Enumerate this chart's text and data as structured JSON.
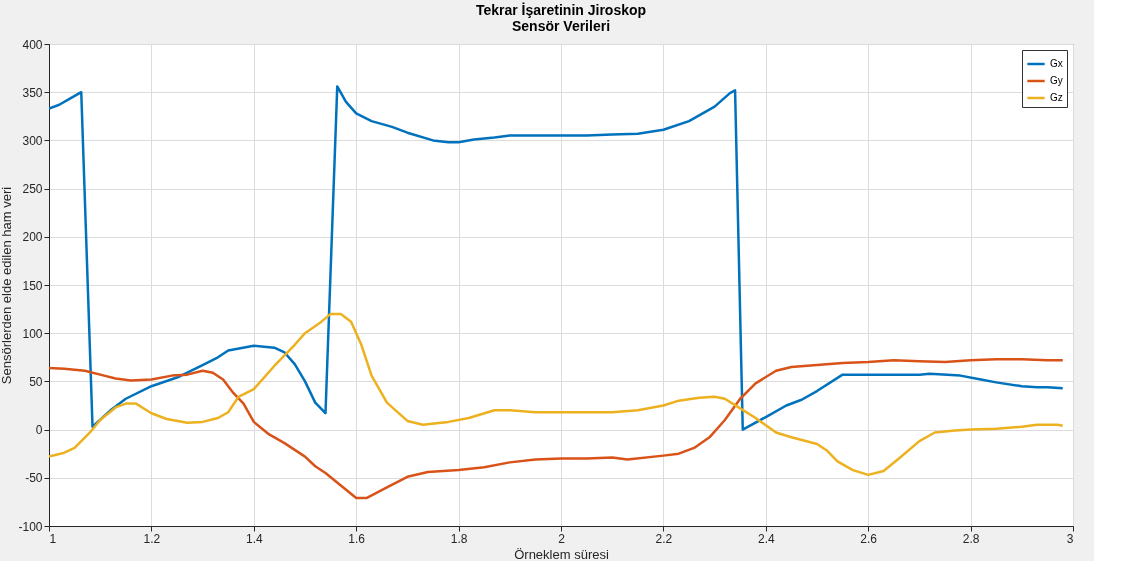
{
  "chart_data": {
    "type": "line",
    "title": "Tekrar İşaretinin Jiroskop",
    "subtitle": "Sensör Verileri",
    "xlabel": "Örneklem süresi",
    "ylabel": "Sensörlerden elde edilen ham veri",
    "xlim": [
      1,
      3
    ],
    "ylim": [
      -100,
      400
    ],
    "xticks": [
      1,
      1.2,
      1.4,
      1.6,
      1.8,
      2,
      2.2,
      2.4,
      2.6,
      2.8,
      3
    ],
    "yticks": [
      -100,
      -50,
      0,
      50,
      100,
      150,
      200,
      250,
      300,
      350,
      400
    ],
    "grid": true,
    "legend": "top right",
    "marker": "none",
    "line_style": "solid",
    "series": [
      {
        "name": "Gx",
        "color": "#0072bd",
        "x": [
          1.0,
          1.02,
          1.04,
          1.063,
          1.085,
          1.12,
          1.15,
          1.2,
          1.25,
          1.3,
          1.33,
          1.35,
          1.4,
          1.44,
          1.46,
          1.48,
          1.5,
          1.52,
          1.54,
          1.563,
          1.58,
          1.6,
          1.63,
          1.67,
          1.7,
          1.75,
          1.78,
          1.8,
          1.83,
          1.87,
          1.9,
          2.0,
          2.05,
          2.1,
          2.15,
          2.2,
          2.25,
          2.3,
          2.33,
          2.34,
          2.355,
          2.4,
          2.44,
          2.47,
          2.5,
          2.55,
          2.6,
          2.65,
          2.7,
          2.72,
          2.78,
          2.82,
          2.85,
          2.9,
          2.93,
          2.95,
          2.98
        ],
        "values": [
          333,
          337,
          343,
          350,
          3,
          20,
          32,
          45,
          54,
          67,
          75,
          82,
          87,
          85,
          80,
          68,
          50,
          28,
          17,
          356,
          340,
          328,
          320,
          314,
          308,
          300,
          298,
          298,
          301,
          303,
          305,
          305,
          305,
          306,
          307,
          311,
          320,
          335,
          349,
          352,
          0,
          13,
          25,
          31,
          40,
          57,
          57,
          57,
          57,
          58,
          56,
          52,
          49,
          45,
          44,
          44,
          43
        ]
      },
      {
        "name": "Gy",
        "color": "#d95319",
        "x": [
          1.0,
          1.03,
          1.07,
          1.1,
          1.13,
          1.16,
          1.2,
          1.24,
          1.27,
          1.3,
          1.32,
          1.34,
          1.36,
          1.38,
          1.4,
          1.43,
          1.46,
          1.5,
          1.52,
          1.54,
          1.57,
          1.6,
          1.62,
          1.66,
          1.7,
          1.74,
          1.8,
          1.85,
          1.9,
          1.95,
          2.0,
          2.05,
          2.1,
          2.13,
          2.2,
          2.23,
          2.26,
          2.29,
          2.32,
          2.35,
          2.38,
          2.42,
          2.45,
          2.5,
          2.55,
          2.6,
          2.65,
          2.7,
          2.75,
          2.8,
          2.85,
          2.9,
          2.95,
          2.98
        ],
        "values": [
          64,
          63,
          61,
          57,
          53,
          51,
          52,
          56,
          57,
          61,
          59,
          52,
          38,
          27,
          8,
          -5,
          -14,
          -28,
          -38,
          -45,
          -58,
          -71,
          -71,
          -60,
          -49,
          -44,
          -42,
          -39,
          -34,
          -31,
          -30,
          -30,
          -29,
          -31,
          -27,
          -25,
          -19,
          -8,
          10,
          32,
          48,
          61,
          65,
          67,
          69,
          70,
          72,
          71,
          70,
          72,
          73,
          73,
          72,
          72
        ]
      },
      {
        "name": "Gz",
        "color": "#edb120",
        "x": [
          1.0,
          1.03,
          1.05,
          1.08,
          1.1,
          1.13,
          1.15,
          1.17,
          1.2,
          1.23,
          1.27,
          1.3,
          1.33,
          1.35,
          1.37,
          1.4,
          1.44,
          1.48,
          1.5,
          1.53,
          1.55,
          1.57,
          1.59,
          1.61,
          1.63,
          1.66,
          1.7,
          1.73,
          1.78,
          1.82,
          1.87,
          1.9,
          1.95,
          2.0,
          2.1,
          2.15,
          2.2,
          2.23,
          2.27,
          2.3,
          2.32,
          2.35,
          2.38,
          2.42,
          2.45,
          2.5,
          2.52,
          2.54,
          2.57,
          2.6,
          2.63,
          2.66,
          2.7,
          2.73,
          2.77,
          2.8,
          2.85,
          2.9,
          2.93,
          2.97,
          2.98
        ],
        "values": [
          -28,
          -24,
          -19,
          -3,
          10,
          23,
          27,
          27,
          17,
          11,
          7,
          8,
          12,
          18,
          34,
          42,
          66,
          88,
          100,
          111,
          120,
          120,
          112,
          88,
          56,
          28,
          9,
          5,
          8,
          12,
          20,
          20,
          18,
          18,
          18,
          20,
          25,
          30,
          33,
          34,
          32,
          22,
          12,
          -3,
          -8,
          -15,
          -22,
          -33,
          -42,
          -47,
          -43,
          -30,
          -12,
          -3,
          -1,
          0,
          1,
          3,
          5,
          5,
          4
        ]
      }
    ]
  }
}
